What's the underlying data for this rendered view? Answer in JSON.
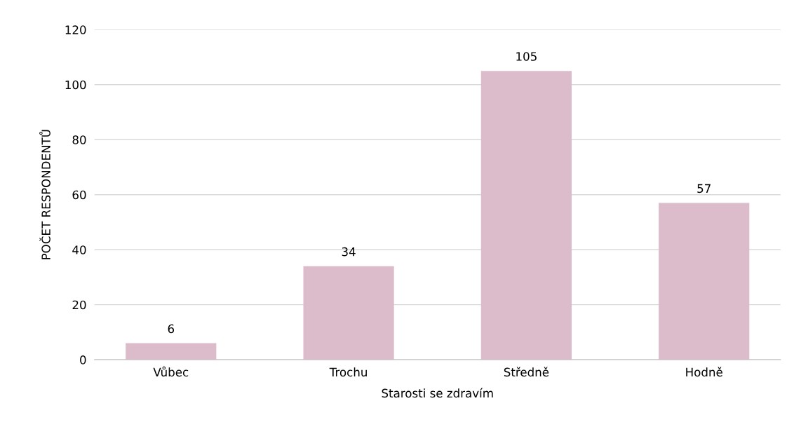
{
  "chart_data": {
    "type": "bar",
    "xlabel": "Starosti se zdravím",
    "ylabel": "POČET RESPONDENTŮ",
    "categories": [
      "Vůbec",
      "Trochu",
      "Středně",
      "Hodně"
    ],
    "values": [
      6,
      34,
      105,
      57
    ],
    "color": "#dcbccb",
    "ylim": [
      0,
      120
    ],
    "yticks": [
      0,
      20,
      40,
      60,
      80,
      100,
      120
    ],
    "grid": "y",
    "data_labels": true
  }
}
